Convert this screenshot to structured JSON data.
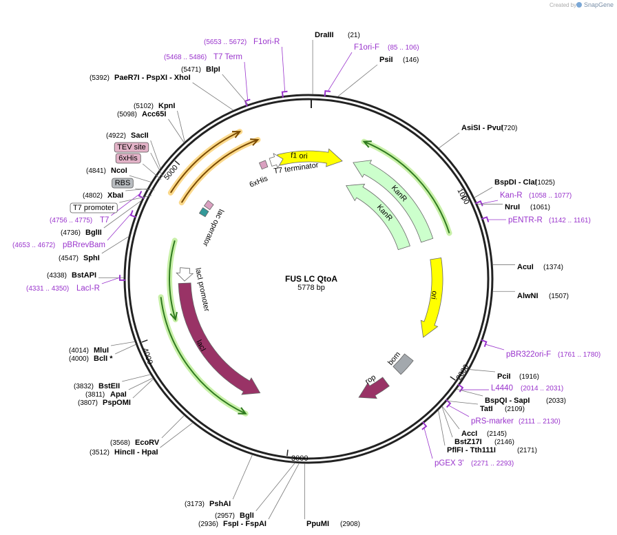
{
  "watermark": {
    "prefix": "Created by",
    "brand": "SnapGene"
  },
  "map": {
    "name": "FUS LC QtoA",
    "size": "5778 bp"
  },
  "ticks": [
    "1000",
    "2000",
    "3000",
    "4000",
    "5000"
  ],
  "sites": [
    {
      "name": "DraIII",
      "pos": "(21)"
    },
    {
      "name": "PsiI",
      "pos": "(146)"
    },
    {
      "name": "AsiSI  - PvuI",
      "pos": "(720)"
    },
    {
      "name": "BspDI  - ClaI",
      "pos": "(1025)"
    },
    {
      "name": "NruI",
      "pos": "(1061)"
    },
    {
      "name": "AcuI",
      "pos": "(1374)"
    },
    {
      "name": "AlwNI",
      "pos": "(1507)"
    },
    {
      "name": "PciI",
      "pos": "(1916)"
    },
    {
      "name": "BspQI  - SapI",
      "pos": "(2033)"
    },
    {
      "name": "TatI",
      "pos": "(2109)"
    },
    {
      "name": "AccI",
      "pos": "(2145)"
    },
    {
      "name": "BstZ17I",
      "pos": "(2146)"
    },
    {
      "name": "PflFI  - Tth111I",
      "pos": "(2171)"
    },
    {
      "name": "PpuMI",
      "pos": "(2908)"
    },
    {
      "name": "BlpI",
      "pos": "(5471)"
    },
    {
      "name": "PaeR7I  - PspXI  - XhoI",
      "pos": "(5392)"
    },
    {
      "name": "KpnI",
      "pos": "(5102)"
    },
    {
      "name": "Acc65I",
      "pos": "(5098)"
    },
    {
      "name": "SacII",
      "pos": "(4922)"
    },
    {
      "name": "NcoI",
      "pos": "(4841)"
    },
    {
      "name": "XbaI",
      "pos": "(4802)"
    },
    {
      "name": "BglII",
      "pos": "(4736)"
    },
    {
      "name": "SphI",
      "pos": "(4547)"
    },
    {
      "name": "BstAPI",
      "pos": "(4338)"
    },
    {
      "name": "MluI",
      "pos": "(4014)"
    },
    {
      "name": "BclI *",
      "pos": "(4000)"
    },
    {
      "name": "BstEII",
      "pos": "(3832)"
    },
    {
      "name": "ApaI",
      "pos": "(3811)"
    },
    {
      "name": "PspOMI",
      "pos": "(3807)"
    },
    {
      "name": "EcoRV",
      "pos": "(3568)"
    },
    {
      "name": "HincII  - HpaI",
      "pos": "(3512)"
    },
    {
      "name": "PshAI",
      "pos": "(3173)"
    },
    {
      "name": "BglI",
      "pos": "(2957)"
    },
    {
      "name": "FspI  - FspAI",
      "pos": "(2936)"
    }
  ],
  "primers": [
    {
      "name": "F1ori-R",
      "pos": "(5653 .. 5672)"
    },
    {
      "name": "F1ori-F",
      "pos": "(85 .. 106)"
    },
    {
      "name": "T7 Term",
      "pos": "(5468 .. 5486)"
    },
    {
      "name": "Kan-R",
      "pos": "(1058 .. 1077)"
    },
    {
      "name": "pENTR-R",
      "pos": "(1142 .. 1161)"
    },
    {
      "name": "T7",
      "pos": "(4756 .. 4775)"
    },
    {
      "name": "pBRrevBam",
      "pos": "(4653 .. 4672)"
    },
    {
      "name": "LacI-R",
      "pos": "(4331 .. 4350)"
    },
    {
      "name": "pBR322ori-F",
      "pos": "(1761 .. 1780)"
    },
    {
      "name": "L4440",
      "pos": "(2014 .. 2031)"
    },
    {
      "name": "pRS-marker",
      "pos": "(2111 .. 2130)"
    },
    {
      "name": "pGEX 3'",
      "pos": "(2271 .. 2293)"
    }
  ],
  "feature_labels": [
    "f1 ori",
    "KanR",
    "KanR",
    "ori",
    "bom",
    "rop",
    "lacI",
    "lacI promoter",
    "lac operator",
    "6xHis",
    "T7 terminator"
  ],
  "boxed_labels": [
    "TEV site",
    "6xHis",
    "RBS",
    "T7 promoter"
  ]
}
